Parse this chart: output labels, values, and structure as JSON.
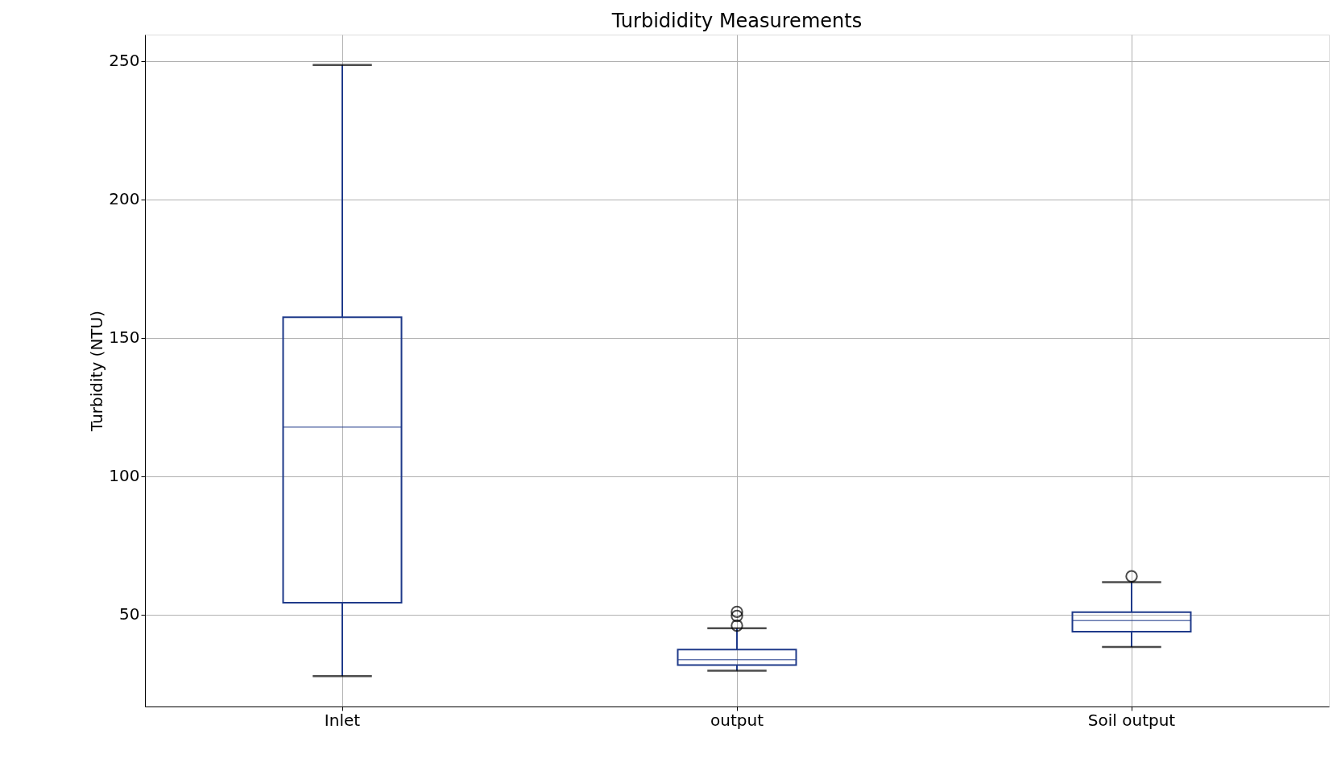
{
  "chart_data": {
    "type": "box",
    "title": "Turbididity Measurements",
    "ylabel": "Turbidity (NTU)",
    "categories": [
      "Inlet",
      "output",
      "Soil output"
    ],
    "series": [
      {
        "color": "#1f3a8a",
        "boxes": [
          {
            "low": 27.8,
            "q1": 54.3,
            "median": 117.7,
            "q3": 157.4,
            "high": 248.5
          },
          {
            "low": 29.7,
            "q1": 31.8,
            "median": 33.7,
            "q3": 37.4,
            "high": 45.1,
            "outliers": [
              46,
              49.5,
              51
            ]
          },
          {
            "low": 38.3,
            "q1": 43.8,
            "median": 47.8,
            "q3": 50.9,
            "high": 61.7,
            "outliers": [
              63.8
            ]
          }
        ]
      }
    ],
    "ylim": [
      16.8,
      259.5
    ],
    "yticks": [
      50,
      100,
      150,
      200,
      250
    ],
    "grid": true
  }
}
